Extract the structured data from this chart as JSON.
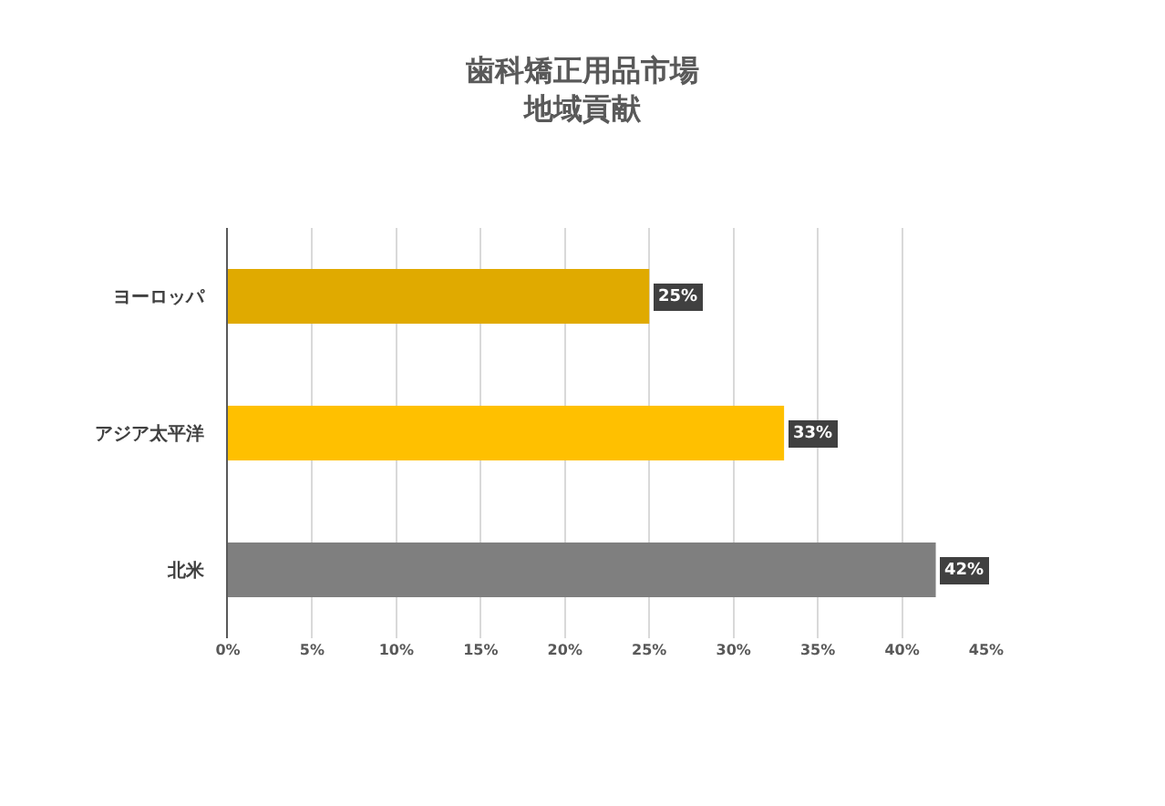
{
  "chart_data": {
    "type": "bar",
    "orientation": "horizontal",
    "title": "歯科矯正用品市場",
    "subtitle": "地域貢献",
    "categories": [
      "ヨーロッパ",
      "アジア太平洋",
      "北米"
    ],
    "values": [
      25,
      33,
      42
    ],
    "colors": [
      "#e0aa00",
      "#ffc000",
      "#7f7f7f"
    ],
    "value_labels": [
      "25%",
      "33%",
      "42%"
    ],
    "xlim": [
      0,
      45
    ],
    "xticks": [
      {
        "value": 0,
        "label": "0%"
      },
      {
        "value": 5,
        "label": "5%"
      },
      {
        "value": 10,
        "label": "10%"
      },
      {
        "value": 15,
        "label": "15%"
      },
      {
        "value": 20,
        "label": "20%"
      },
      {
        "value": 25,
        "label": "25%"
      },
      {
        "value": 30,
        "label": "30%"
      },
      {
        "value": 35,
        "label": "35%"
      },
      {
        "value": 40,
        "label": "40%"
      },
      {
        "value": 45,
        "label": "45%"
      }
    ],
    "grid": "x"
  }
}
